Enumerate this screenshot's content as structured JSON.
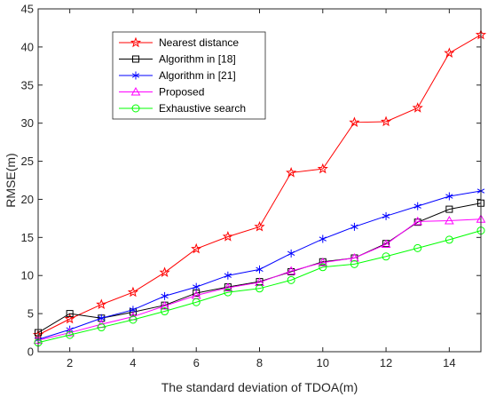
{
  "chart_data": {
    "type": "line",
    "title": "",
    "xlabel": "The standard deviation of TDOA(m)",
    "ylabel": "RMSE(m)",
    "xlim": [
      1,
      15
    ],
    "ylim": [
      0,
      45
    ],
    "xticks": [
      2,
      4,
      6,
      8,
      10,
      12,
      14
    ],
    "yticks": [
      0,
      5,
      10,
      15,
      20,
      25,
      30,
      35,
      40,
      45
    ],
    "grid": false,
    "legend_position": "top-left",
    "x": [
      1,
      2,
      3,
      4,
      5,
      6,
      7,
      8,
      9,
      10,
      11,
      12,
      13,
      14,
      15
    ],
    "series": [
      {
        "name": "Nearest distance",
        "color": "#ff0000",
        "marker": "star-icon",
        "values": [
          2.2,
          4.3,
          6.2,
          7.8,
          10.4,
          13.5,
          15.1,
          16.4,
          23.5,
          24.0,
          30.1,
          30.2,
          32.0,
          39.2,
          41.6
        ]
      },
      {
        "name": "Algorithm in [18]",
        "color": "#000000",
        "marker": "square-icon",
        "values": [
          2.5,
          5.0,
          4.4,
          5.2,
          6.1,
          7.7,
          8.5,
          9.2,
          10.5,
          11.8,
          12.3,
          14.2,
          17.0,
          18.7,
          19.5
        ]
      },
      {
        "name": "Algorithm in [21]",
        "color": "#0000ff",
        "marker": "asterisk-icon",
        "values": [
          1.6,
          2.9,
          4.4,
          5.5,
          7.3,
          8.5,
          10.0,
          10.8,
          12.9,
          14.8,
          16.4,
          17.8,
          19.1,
          20.4,
          21.1
        ]
      },
      {
        "name": "Proposed",
        "color": "#ff00ff",
        "marker": "triangle-icon",
        "values": [
          1.5,
          2.5,
          3.6,
          4.6,
          6.0,
          7.4,
          8.4,
          9.1,
          10.6,
          11.7,
          12.3,
          14.1,
          17.1,
          17.2,
          17.4
        ]
      },
      {
        "name": "Exhaustive search",
        "color": "#00ff00",
        "marker": "circle-icon",
        "values": [
          1.2,
          2.2,
          3.2,
          4.2,
          5.3,
          6.5,
          7.8,
          8.3,
          9.4,
          11.1,
          11.5,
          12.5,
          13.6,
          14.7,
          15.9
        ]
      }
    ]
  }
}
